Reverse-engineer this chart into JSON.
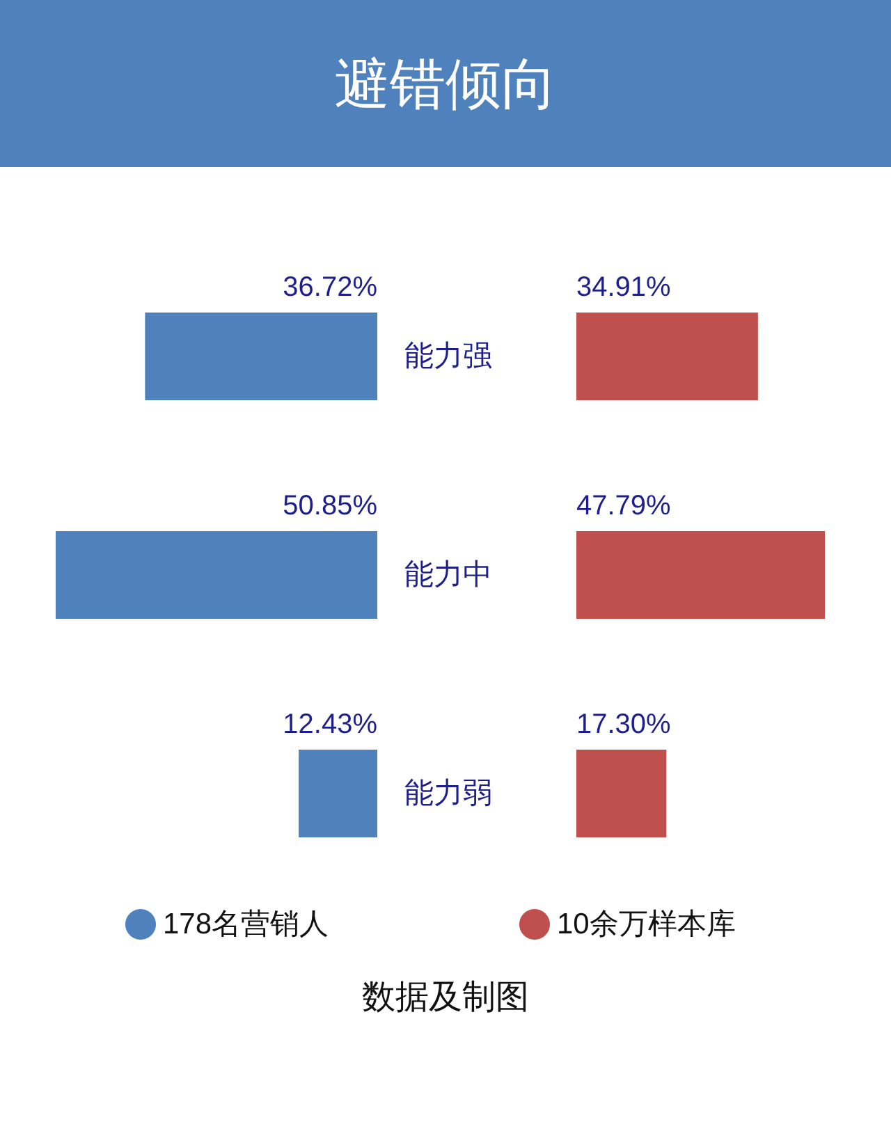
{
  "chart_data": [
    {
      "type": "bar",
      "orientation": "horizontal",
      "title": "避错倾向",
      "categories": [
        "能力强",
        "能力中",
        "能力弱"
      ],
      "series": [
        {
          "name": "178名营销人",
          "color": "#4f81bd",
          "values": [
            36.72,
            50.85,
            12.43
          ],
          "value_labels": [
            "36.72%",
            "50.85%",
            "12.43%"
          ]
        }
      ],
      "legend": "bottom",
      "annotations": [
        "数据及制图"
      ]
    },
    {
      "type": "bar",
      "orientation": "horizontal",
      "categories": [
        null,
        null,
        null
      ],
      "series": [
        {
          "name": "10余万样本库",
          "color": "#c0504d",
          "values": [
            34.91,
            47.79,
            17.3
          ],
          "value_labels": [
            "34.91%",
            "47.79%",
            "17.30%"
          ]
        }
      ],
      "legend": "bottom"
    }
  ]
}
